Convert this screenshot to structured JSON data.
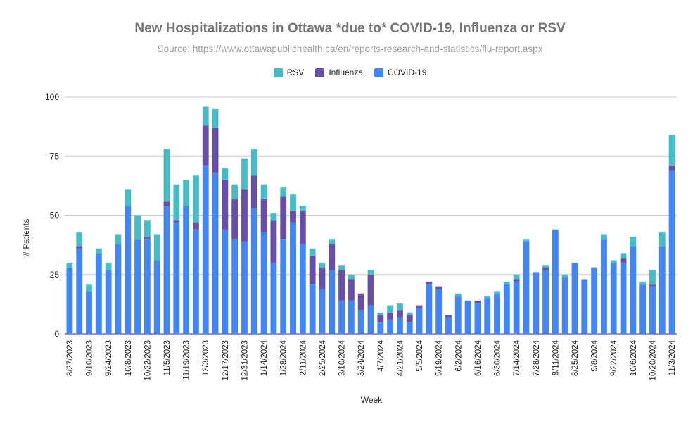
{
  "chart_data": {
    "type": "bar",
    "stacked": true,
    "title": "New Hospitalizations in Ottawa *due to* COVID-19, Influenza or RSV",
    "subtitle": "Source: https://www.ottawapublichealth.ca/en/reports-research-and-statistics/flu-report.aspx",
    "xlabel": "Week",
    "ylabel": "# Patients",
    "ylim": [
      0,
      100
    ],
    "yticks": [
      0,
      25,
      50,
      75,
      100
    ],
    "grid": true,
    "legend_position": "top",
    "legend_order": [
      "RSV",
      "Influenza",
      "COVID-19"
    ],
    "categories": [
      "8/27/2023",
      "9/3/2023",
      "9/10/2023",
      "9/17/2023",
      "9/24/2023",
      "10/1/2023",
      "10/8/2023",
      "10/15/2023",
      "10/22/2023",
      "10/29/2023",
      "11/5/2023",
      "11/12/2023",
      "11/19/2023",
      "11/26/2023",
      "12/3/2023",
      "12/10/2023",
      "12/17/2023",
      "12/24/2023",
      "12/31/2023",
      "1/7/2024",
      "1/14/2024",
      "1/21/2024",
      "1/28/2024",
      "2/4/2024",
      "2/11/2024",
      "2/18/2024",
      "2/25/2024",
      "3/3/2024",
      "3/10/2024",
      "3/17/2024",
      "3/24/2024",
      "3/31/2024",
      "4/7/2024",
      "4/14/2024",
      "4/21/2024",
      "4/28/2024",
      "5/5/2024",
      "5/12/2024",
      "5/19/2024",
      "5/26/2024",
      "6/2/2024",
      "6/9/2024",
      "6/16/2024",
      "6/23/2024",
      "6/30/2024",
      "7/7/2024",
      "7/14/2024",
      "7/21/2024",
      "7/28/2024",
      "8/4/2024",
      "8/11/2024",
      "8/18/2024",
      "8/25/2024",
      "9/1/2024",
      "9/8/2024",
      "9/15/2024",
      "9/22/2024",
      "9/29/2024",
      "10/6/2024",
      "10/13/2024",
      "10/20/2024",
      "10/27/2024",
      "11/3/2024"
    ],
    "visible_tick_labels": [
      "8/27/2023",
      "9/10/2023",
      "9/24/2023",
      "10/8/2023",
      "10/22/2023",
      "11/5/2023",
      "11/19/2023",
      "12/3/2023",
      "12/17/2023",
      "12/31/2023",
      "1/14/2024",
      "1/28/2024",
      "2/11/2024",
      "2/25/2024",
      "3/10/2024",
      "3/24/2024",
      "4/7/2024",
      "4/21/2024",
      "5/5/2024",
      "5/19/2024",
      "6/2/2024",
      "6/16/2024",
      "6/30/2024",
      "7/14/2024",
      "7/28/2024",
      "8/11/2024",
      "8/25/2024",
      "9/8/2024",
      "9/22/2024",
      "10/6/2024",
      "10/20/2024",
      "11/3/2024"
    ],
    "series": [
      {
        "name": "COVID-19",
        "color": "#4285f4",
        "values": [
          28,
          36,
          18,
          34,
          27,
          38,
          54,
          40,
          40,
          31,
          54,
          47,
          54,
          44,
          71,
          68,
          44,
          40,
          39,
          53,
          43,
          30,
          40,
          47,
          38,
          21,
          19,
          27,
          14,
          14,
          10,
          12,
          5,
          6,
          7,
          5,
          11,
          21,
          19,
          7,
          16,
          14,
          13,
          15,
          17,
          21,
          22,
          39,
          26,
          27,
          44,
          24,
          30,
          23,
          28,
          40,
          30,
          30,
          37,
          21,
          20,
          37,
          69
        ]
      },
      {
        "name": "Influenza",
        "color": "#674ea7",
        "values": [
          0,
          1,
          0,
          0,
          0,
          0,
          0,
          0,
          1,
          0,
          2,
          1,
          0,
          3,
          17,
          19,
          21,
          17,
          22,
          14,
          14,
          18,
          18,
          5,
          14,
          12,
          9,
          11,
          13,
          9,
          7,
          13,
          3,
          3,
          3,
          3,
          1,
          1,
          1,
          1,
          0,
          0,
          1,
          0,
          0,
          0,
          1,
          0,
          0,
          1,
          0,
          0,
          0,
          0,
          0,
          0,
          0,
          2,
          0,
          0,
          1,
          0,
          2
        ]
      },
      {
        "name": "RSV",
        "color": "#46bdc6",
        "values": [
          2,
          6,
          3,
          2,
          3,
          4,
          7,
          10,
          7,
          11,
          22,
          15,
          11,
          20,
          8,
          8,
          5,
          6,
          13,
          11,
          6,
          3,
          4,
          7,
          2,
          3,
          2,
          2,
          2,
          2,
          0,
          2,
          1,
          3,
          3,
          1,
          0,
          0,
          0,
          0,
          1,
          0,
          0,
          1,
          1,
          1,
          2,
          1,
          0,
          1,
          0,
          1,
          0,
          0,
          0,
          2,
          1,
          2,
          4,
          1,
          6,
          6,
          13
        ]
      }
    ]
  }
}
